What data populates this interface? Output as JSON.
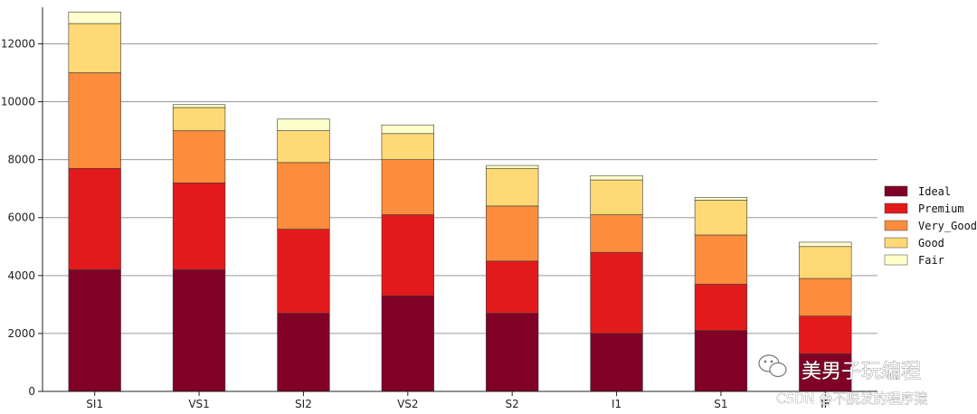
{
  "chart_data": {
    "type": "bar",
    "stacked": true,
    "categories": [
      "SI1",
      "VS1",
      "SI2",
      "VS2",
      "S2",
      "I1",
      "S1",
      "IF"
    ],
    "series": [
      {
        "name": "Ideal",
        "color": "#800026",
        "values": [
          4200,
          4200,
          2700,
          3300,
          2700,
          2000,
          2100,
          1300
        ]
      },
      {
        "name": "Premium",
        "color": "#e31a1c",
        "values": [
          3500,
          3000,
          2900,
          2800,
          1800,
          2800,
          1600,
          1300
        ]
      },
      {
        "name": "Very_Good",
        "color": "#fd8d3c",
        "values": [
          3300,
          1800,
          2300,
          1900,
          1900,
          1300,
          1700,
          1300
        ]
      },
      {
        "name": "Good",
        "color": "#fed976",
        "values": [
          1700,
          800,
          1100,
          900,
          1300,
          1200,
          1200,
          1100
        ]
      },
      {
        "name": "Fair",
        "color": "#ffffcc",
        "values": [
          400,
          100,
          400,
          300,
          100,
          150,
          100,
          150
        ]
      }
    ],
    "yticks": [
      0,
      2000,
      4000,
      6000,
      8000,
      10000,
      12000
    ],
    "ylim": [
      0,
      13200
    ],
    "grid": "y",
    "legend_position": "right"
  },
  "watermark": {
    "main": "美男子玩编程",
    "sub": "CSDN @不脱发的程序猿"
  }
}
